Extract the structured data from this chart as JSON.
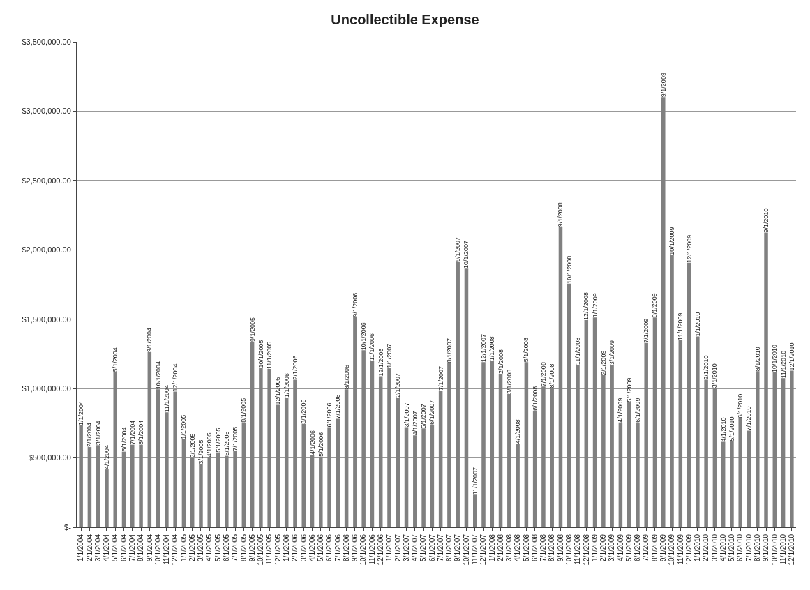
{
  "chart_data": {
    "type": "bar",
    "title": "Uncollectible Expense",
    "categories": [
      "1/1/2004",
      "2/1/2004",
      "3/1/2004",
      "4/1/2004",
      "5/1/2004",
      "6/1/2004",
      "7/1/2004",
      "8/1/2004",
      "9/1/2004",
      "10/1/2004",
      "11/1/2004",
      "12/1/2004",
      "1/1/2005",
      "2/1/2005",
      "3/1/2005",
      "4/1/2005",
      "5/1/2005",
      "6/1/2005",
      "7/1/2005",
      "8/1/2005",
      "9/1/2005",
      "10/1/2005",
      "11/1/2005",
      "12/1/2005",
      "1/1/2006",
      "2/1/2006",
      "3/1/2006",
      "4/1/2006",
      "5/1/2006",
      "6/1/2006",
      "7/1/2006",
      "8/1/2006",
      "9/1/2006",
      "10/1/2006",
      "11/1/2006",
      "12/1/2006",
      "1/1/2007",
      "2/1/2007",
      "3/1/2007",
      "4/1/2007",
      "5/1/2007",
      "6/1/2007",
      "7/1/2007",
      "8/1/2007",
      "9/1/2007",
      "10/1/2007",
      "11/1/2007",
      "12/1/2007",
      "1/1/2008",
      "2/1/2008",
      "3/1/2008",
      "4/1/2008",
      "5/1/2008",
      "6/1/2008",
      "7/1/2008",
      "8/1/2008",
      "9/1/2008",
      "10/1/2008",
      "11/1/2008",
      "12/1/2008",
      "1/1/2009",
      "2/1/2009",
      "3/1/2009",
      "4/1/2009",
      "5/1/2009",
      "6/1/2009",
      "7/1/2009",
      "8/1/2009",
      "9/1/2009",
      "10/1/2009",
      "11/1/2009",
      "12/1/2009",
      "1/1/2010",
      "2/1/2010",
      "3/1/2010",
      "4/1/2010",
      "5/1/2010",
      "6/1/2010",
      "7/1/2010",
      "8/1/2010",
      "9/1/2010",
      "10/1/2010",
      "11/1/2010",
      "12/1/2010"
    ],
    "values": [
      734000,
      578000,
      592000,
      417000,
      1120000,
      545000,
      595000,
      595000,
      1262000,
      995000,
      828000,
      978000,
      635000,
      500000,
      455000,
      506000,
      540000,
      515000,
      549000,
      755000,
      1338000,
      1149000,
      1141000,
      883000,
      935000,
      1063000,
      746000,
      523000,
      509000,
      722000,
      782000,
      995000,
      1515000,
      1276000,
      1200000,
      1089000,
      1148000,
      935000,
      722000,
      662000,
      713000,
      740000,
      986000,
      1186000,
      1916000,
      1865000,
      235000,
      1191000,
      1200000,
      1106000,
      961000,
      602000,
      1191000,
      841000,
      1015000,
      1003000,
      2166000,
      1756000,
      1171000,
      1493000,
      1512000,
      1098000,
      1171000,
      756000,
      902000,
      756000,
      1329000,
      1512000,
      3102000,
      1963000,
      1348000,
      1907000,
      1375000,
      1063000,
      1004000,
      616000,
      621000,
      786000,
      696000,
      1125000,
      2125000,
      1116000,
      1075000,
      1129000
    ],
    "value_labels": [
      "1/1/2004",
      "2/1/2004",
      "3/1/2004",
      "4/1/2004",
      "5/1/2004",
      "6/1/2004",
      "7/1/2004",
      "8/1/2004",
      "9/1/2004",
      "10/1/2004",
      "11/1/2004",
      "12/1/2004",
      "1/1/2005",
      "2/1/2005",
      "3/1/2005",
      "4/1/2005",
      "5/1/2005",
      "6/1/2005",
      "7/1/2005",
      "8/1/2005",
      "9/1/2005",
      "10/1/2005",
      "11/1/2005",
      "12/1/2005",
      "1/1/2006",
      "2/1/2006",
      "3/1/2006",
      "4/1/2006",
      "5/1/2006",
      "6/1/2006",
      "7/1/2006",
      "8/1/2006",
      "9/1/2006",
      "10/1/2006",
      "11/1/2006",
      "12/1/2006",
      "1/1/2007",
      "2/1/2007",
      "3/1/2007",
      "4/1/2007",
      "5/1/2007",
      "6/1/2007",
      "7/1/2007",
      "8/1/2007",
      "9/1/2007",
      "10/1/2007",
      "11/1/2007",
      "12/1/2007",
      "1/1/2008",
      "2/1/2008",
      "3/1/2008",
      "4/1/2008",
      "5/1/2008",
      "6/1/2008",
      "7/1/2008",
      "8/1/2008",
      "9/1/2008",
      "10/1/2008",
      "11/1/2008",
      "12/1/2008",
      "1/1/2009",
      "2/1/2009",
      "3/1/2009",
      "4/1/2009",
      "5/1/2009",
      "6/1/2009",
      "7/1/2009",
      "8/1/2009",
      "9/1/2009",
      "10/1/2009",
      "11/1/2009",
      "12/1/2009",
      "1/1/2010",
      "2/1/2010",
      "3/1/2010",
      "4/1/2010",
      "5/1/2010",
      "6/1/2010",
      "7/1/2010",
      "8/1/2010",
      "9/1/2010",
      "10/1/2010",
      "11/1/2010",
      "12/1/2010"
    ],
    "color": "#808080",
    "ylim": [
      0,
      3500000
    ],
    "yticks": [
      {
        "value": 0,
        "label": "$-"
      },
      {
        "value": 500000,
        "label": "$500,000.00"
      },
      {
        "value": 1000000,
        "label": "$1,000,000.00"
      },
      {
        "value": 1500000,
        "label": "$1,500,000.00"
      },
      {
        "value": 2000000,
        "label": "$2,000,000.00"
      },
      {
        "value": 2500000,
        "label": "$2,500,000.00"
      },
      {
        "value": 3000000,
        "label": "$3,000,000.00"
      },
      {
        "value": 3500000,
        "label": "$3,500,000.00"
      }
    ],
    "grid": "y"
  }
}
